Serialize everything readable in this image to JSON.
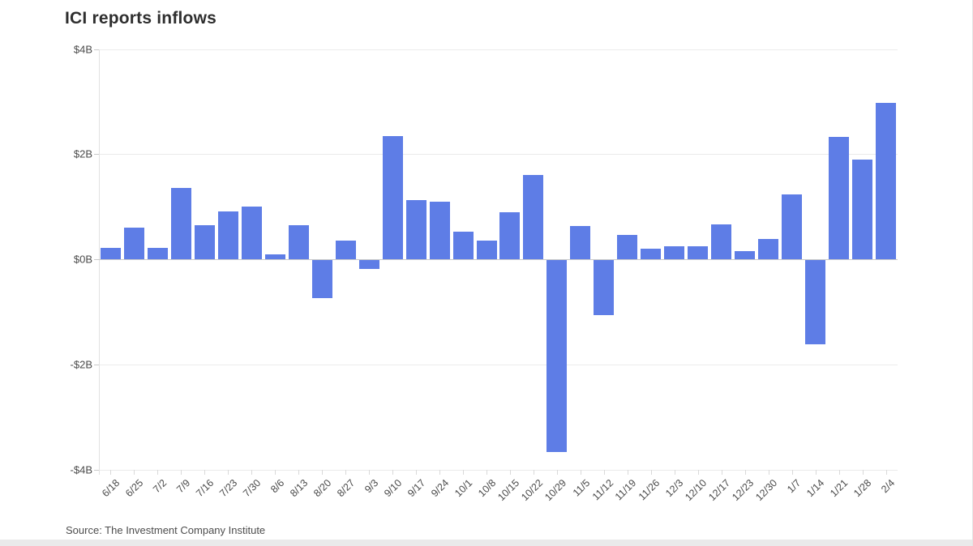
{
  "header": {
    "title": "ICI reports inflows"
  },
  "footer": {
    "source": "Source: The Investment Company Institute"
  },
  "chart_data": {
    "type": "bar",
    "title": "ICI reports inflows",
    "xlabel": "",
    "ylabel": "",
    "unit": "billions USD",
    "ylim": [
      -4,
      4
    ],
    "grid": "horizontal",
    "legend": "none",
    "y_ticks": [
      {
        "value": 4,
        "label": "$4B"
      },
      {
        "value": 2,
        "label": "$2B"
      },
      {
        "value": 0,
        "label": "$0B"
      },
      {
        "value": -2,
        "label": "-$2B"
      },
      {
        "value": -4,
        "label": "-$4B"
      }
    ],
    "categories": [
      "6/18",
      "6/25",
      "7/2",
      "7/9",
      "7/16",
      "7/23",
      "7/30",
      "8/6",
      "8/13",
      "8/20",
      "8/27",
      "9/3",
      "9/10",
      "9/17",
      "9/24",
      "10/1",
      "10/8",
      "10/15",
      "10/22",
      "10/29",
      "11/5",
      "11/12",
      "11/19",
      "11/26",
      "12/3",
      "12/10",
      "12/17",
      "12/23",
      "12/30",
      "1/7",
      "1/14",
      "1/21",
      "1/28",
      "2/4"
    ],
    "values": [
      0.22,
      0.6,
      0.22,
      1.35,
      0.65,
      0.91,
      1.0,
      0.1,
      0.64,
      -0.73,
      0.35,
      -0.17,
      2.35,
      1.12,
      1.1,
      0.53,
      0.36,
      0.9,
      1.61,
      -3.65,
      0.63,
      -1.05,
      0.47,
      0.2,
      0.25,
      0.25,
      0.67,
      0.15,
      0.38,
      1.24,
      -1.6,
      2.32,
      1.9,
      2.98
    ],
    "colors": {
      "bar": "#5e7de6",
      "grid": "#ebebeb",
      "baseline": "#c9c9c9",
      "axis": "#e2e2e2",
      "label": "#4a4a4a",
      "title": "#2e2e2e",
      "source": "#4d4d4d"
    }
  }
}
